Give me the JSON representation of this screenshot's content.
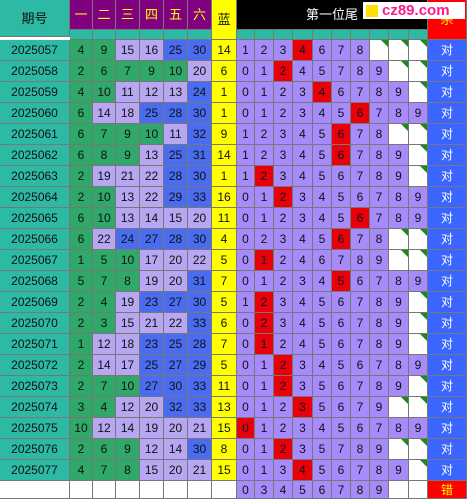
{
  "header": {
    "period_label": "期号",
    "red_cols": [
      "一",
      "二",
      "三",
      "四",
      "五",
      "六"
    ],
    "blue_label": "蓝",
    "tail_label": "第一位尾",
    "kill_label": "杀",
    "site_logo": "cz89.com"
  },
  "colors": {
    "period_bg": "#2dbaa4",
    "red_col_header_bg": "#800080",
    "red_col_header_text": "#ffff00",
    "blue_col_bg": "#ffff00",
    "tail_header_bg": "#000000",
    "tail_cell_bg": "#a78bfa",
    "tail_hit_bg": "#e8000b",
    "kill_header_bg": "#ff0000",
    "kill_cell_bg": "#3a66ff",
    "ball_green": "#2fa86a",
    "ball_lavender": "#b7a6f2",
    "ball_blue": "#4a6cf0",
    "tail_row_gap_bg": "#ffffff",
    "blue_row_bg": "#ffff00",
    "corner_mark": "#1a8a1a"
  },
  "rows": [
    {
      "period": "2025057",
      "balls": [
        4,
        9,
        15,
        16,
        25,
        30
      ],
      "blue": 14,
      "tail": [
        1,
        2,
        3,
        4,
        6,
        7,
        8,
        null,
        null,
        null
      ],
      "hit": 4,
      "kill": "对"
    },
    {
      "period": "2025058",
      "balls": [
        2,
        6,
        7,
        9,
        10,
        20
      ],
      "blue": 6,
      "tail": [
        0,
        1,
        2,
        4,
        5,
        7,
        8,
        9,
        null,
        null
      ],
      "hit": 2,
      "kill": "对"
    },
    {
      "period": "2025059",
      "balls": [
        4,
        10,
        11,
        12,
        13,
        24
      ],
      "blue": 1,
      "tail": [
        0,
        1,
        2,
        3,
        4,
        6,
        7,
        8,
        9,
        null
      ],
      "hit": 4,
      "kill": "对"
    },
    {
      "period": "2025060",
      "balls": [
        6,
        14,
        18,
        25,
        28,
        30
      ],
      "blue": 1,
      "tail": [
        0,
        1,
        2,
        3,
        4,
        5,
        6,
        7,
        8,
        9
      ],
      "hit": 6,
      "kill": "对"
    },
    {
      "period": "2025061",
      "balls": [
        6,
        7,
        9,
        10,
        11,
        32
      ],
      "blue": 9,
      "tail": [
        1,
        2,
        3,
        4,
        5,
        6,
        7,
        8,
        null,
        null
      ],
      "hit": 6,
      "kill": "对"
    },
    {
      "period": "2025062",
      "balls": [
        6,
        8,
        9,
        13,
        25,
        31
      ],
      "blue": 14,
      "tail": [
        1,
        2,
        3,
        4,
        5,
        6,
        7,
        8,
        9,
        null
      ],
      "hit": 6,
      "kill": "对"
    },
    {
      "period": "2025063",
      "balls": [
        2,
        19,
        21,
        22,
        28,
        30
      ],
      "blue": 1,
      "tail": [
        1,
        2,
        3,
        4,
        5,
        6,
        7,
        8,
        9,
        null
      ],
      "hit": 2,
      "kill": "对"
    },
    {
      "period": "2025064",
      "balls": [
        2,
        10,
        13,
        22,
        29,
        33
      ],
      "blue": 16,
      "tail": [
        0,
        1,
        2,
        3,
        4,
        5,
        6,
        7,
        8,
        9
      ],
      "hit": 2,
      "kill": "对"
    },
    {
      "period": "2025065",
      "balls": [
        6,
        10,
        13,
        14,
        15,
        20
      ],
      "blue": 11,
      "tail": [
        0,
        1,
        2,
        3,
        4,
        5,
        6,
        7,
        8,
        9
      ],
      "hit": 6,
      "kill": "对"
    },
    {
      "period": "2025066",
      "balls": [
        6,
        22,
        24,
        27,
        28,
        30
      ],
      "blue": 4,
      "tail": [
        0,
        2,
        3,
        4,
        5,
        6,
        7,
        8,
        null,
        null
      ],
      "hit": 6,
      "kill": "对"
    },
    {
      "period": "2025067",
      "balls": [
        1,
        5,
        10,
        17,
        20,
        22
      ],
      "blue": 5,
      "tail": [
        0,
        1,
        2,
        4,
        6,
        7,
        8,
        9,
        null,
        null
      ],
      "hit": 1,
      "kill": "对"
    },
    {
      "period": "2025068",
      "balls": [
        5,
        7,
        8,
        19,
        20,
        31
      ],
      "blue": 7,
      "tail": [
        0,
        1,
        2,
        3,
        4,
        5,
        6,
        7,
        8,
        9
      ],
      "hit": 5,
      "kill": "对"
    },
    {
      "period": "2025069",
      "balls": [
        2,
        4,
        19,
        23,
        27,
        30
      ],
      "blue": 5,
      "tail": [
        1,
        2,
        3,
        4,
        5,
        6,
        7,
        8,
        9,
        null
      ],
      "hit": 2,
      "kill": "对"
    },
    {
      "period": "2025070",
      "balls": [
        2,
        3,
        15,
        21,
        22,
        33
      ],
      "blue": 6,
      "tail": [
        0,
        2,
        3,
        4,
        5,
        6,
        7,
        8,
        9,
        null
      ],
      "hit": 2,
      "kill": "对"
    },
    {
      "period": "2025071",
      "balls": [
        1,
        12,
        18,
        23,
        25,
        28
      ],
      "blue": 7,
      "tail": [
        0,
        1,
        2,
        4,
        5,
        6,
        7,
        8,
        9,
        null
      ],
      "hit": 1,
      "kill": "对"
    },
    {
      "period": "2025072",
      "balls": [
        2,
        14,
        17,
        25,
        27,
        29
      ],
      "blue": 5,
      "tail": [
        0,
        1,
        2,
        3,
        4,
        5,
        6,
        7,
        8,
        9
      ],
      "hit": 2,
      "kill": "对"
    },
    {
      "period": "2025073",
      "balls": [
        2,
        7,
        10,
        27,
        30,
        33
      ],
      "blue": 11,
      "tail": [
        0,
        1,
        2,
        3,
        5,
        6,
        7,
        8,
        9,
        null
      ],
      "hit": 2,
      "kill": "对"
    },
    {
      "period": "2025074",
      "balls": [
        3,
        4,
        12,
        20,
        32,
        33
      ],
      "blue": 13,
      "tail": [
        0,
        1,
        2,
        3,
        5,
        6,
        7,
        9,
        null,
        null
      ],
      "hit": 3,
      "kill": "对"
    },
    {
      "period": "2025075",
      "balls": [
        10,
        12,
        14,
        19,
        20,
        21
      ],
      "blue": 15,
      "tail": [
        0,
        1,
        2,
        3,
        4,
        5,
        6,
        7,
        8,
        9
      ],
      "hit": 0,
      "kill": "对"
    },
    {
      "period": "2025076",
      "balls": [
        2,
        6,
        9,
        12,
        14,
        30
      ],
      "blue": 8,
      "tail": [
        0,
        1,
        2,
        3,
        5,
        7,
        8,
        9,
        null,
        null
      ],
      "hit": 2,
      "kill": "对"
    },
    {
      "period": "2025077",
      "balls": [
        4,
        7,
        8,
        15,
        20,
        21
      ],
      "blue": 15,
      "tail": [
        0,
        1,
        3,
        4,
        5,
        6,
        7,
        8,
        9,
        null
      ],
      "hit": 4,
      "kill": "对"
    }
  ],
  "footer": {
    "tail": [
      0,
      3,
      4,
      5,
      6,
      7,
      8,
      9
    ],
    "kill": "错"
  }
}
